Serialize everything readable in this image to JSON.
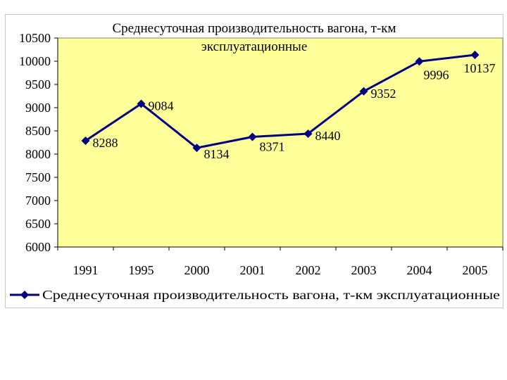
{
  "chart_data": {
    "type": "line",
    "title_lines": [
      "Среднесуточная производительность вагона, т-км",
      "эксплуатационные"
    ],
    "categories": [
      "1991",
      "1995",
      "2000",
      "2001",
      "2002",
      "2003",
      "2004",
      "2005"
    ],
    "series": [
      {
        "name": "Среднесуточная производительность вагона, т-км эксплуатационные",
        "values": [
          8288,
          9084,
          8134,
          8371,
          8440,
          9352,
          9996,
          10137
        ],
        "color": "#000080"
      }
    ],
    "yticks": [
      "6000",
      "6500",
      "7000",
      "7500",
      "8000",
      "8500",
      "9000",
      "9500",
      "10000",
      "10500"
    ],
    "ylim": [
      6000,
      10500
    ],
    "plot_background": "#ffff99",
    "legend_position": "bottom",
    "grid": false
  }
}
